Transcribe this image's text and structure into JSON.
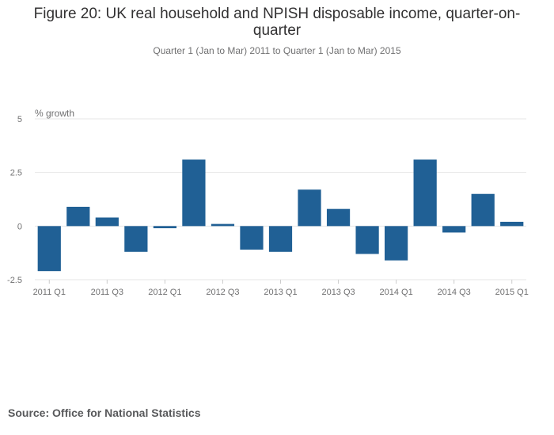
{
  "chart_data": {
    "type": "bar",
    "title": "Figure 20: UK real household and NPISH disposable income, quarter-on-quarter",
    "subtitle": "Quarter 1 (Jan to Mar) 2011 to Quarter 1 (Jan to Mar) 2015",
    "ylabel": "% growth",
    "xlabel": "",
    "ylim": [
      -2.5,
      5
    ],
    "yticks": [
      "5",
      "2.5",
      "0",
      "-2.5"
    ],
    "ytick_values": [
      5,
      2.5,
      0,
      -2.5
    ],
    "categories": [
      "2011 Q1",
      "2011 Q2",
      "2011 Q3",
      "2011 Q4",
      "2012 Q1",
      "2012 Q2",
      "2012 Q3",
      "2012 Q4",
      "2013 Q1",
      "2013 Q2",
      "2013 Q3",
      "2013 Q4",
      "2014 Q1",
      "2014 Q2",
      "2014 Q3",
      "2014 Q4",
      "2015 Q1"
    ],
    "xtick_labels": [
      "2011 Q1",
      "2011 Q3",
      "2012 Q1",
      "2012 Q3",
      "2013 Q1",
      "2013 Q3",
      "2014 Q1",
      "2014 Q3",
      "2015 Q1"
    ],
    "values": [
      -2.1,
      0.9,
      0.4,
      -1.2,
      -0.1,
      3.1,
      0.1,
      -1.1,
      -1.2,
      1.7,
      0.8,
      -1.3,
      -1.6,
      3.1,
      -0.3,
      1.5,
      0.2
    ],
    "bar_color": "#206095",
    "grid": true,
    "source": "Source: Office for National Statistics"
  }
}
